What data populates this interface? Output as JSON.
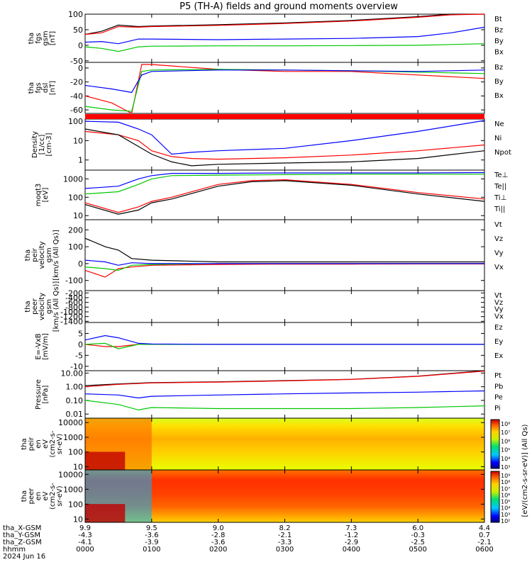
{
  "title": "P5 (TH-A) fields and ground moments overview",
  "panels": [
    {
      "id": "fgs_gsm",
      "label_lines": [
        "tha",
        "fgs",
        "gsm",
        "[nT]"
      ],
      "scale": "linear",
      "ylim": [
        -55,
        100
      ],
      "ticks": [
        -50,
        0,
        50,
        100
      ],
      "legend": [
        {
          "name": "Bt",
          "color": "#000000"
        },
        {
          "name": "Bz",
          "color": "#ff0000"
        },
        {
          "name": "By",
          "color": "#00c800"
        },
        {
          "name": "Bx",
          "color": "#0000ff"
        }
      ]
    },
    {
      "id": "fgs_dsl",
      "label_lines": [
        "tha",
        "fgs",
        "dsl",
        "[nT]"
      ],
      "scale": "linear",
      "ylim": [
        -65,
        8
      ],
      "ticks": [
        -60,
        -40,
        -20,
        0
      ],
      "legend": [
        {
          "name": "Bz",
          "color": "#ff0000"
        },
        {
          "name": "By",
          "color": "#00c800"
        },
        {
          "name": "Bx",
          "color": "#0000ff"
        }
      ]
    },
    {
      "id": "density",
      "label_lines": [
        "Density",
        "[1/cc]",
        "[cm-3]"
      ],
      "scale": "log",
      "ylim": [
        0.3,
        130
      ],
      "ticks": [
        1,
        10,
        100
      ],
      "legend": [
        {
          "name": "Ne",
          "color": "#ff0000"
        },
        {
          "name": "Ni",
          "color": "#000000"
        },
        {
          "name": "Npot",
          "color": "#0000ff"
        }
      ]
    },
    {
      "id": "temp",
      "label_lines": [
        "moqt3",
        "[eV]"
      ],
      "scale": "log",
      "ylim": [
        6,
        3000
      ],
      "ticks": [
        10,
        100,
        1000
      ],
      "legend": [
        {
          "name": "Te⊥",
          "color": "#ff0000"
        },
        {
          "name": "Te||",
          "color": "#000000"
        },
        {
          "name": "Ti⊥",
          "color": "#0000ff"
        },
        {
          "name": "Ti||",
          "color": "#00c800"
        }
      ]
    },
    {
      "id": "peir_vel",
      "label_lines": [
        "tha",
        "peir",
        "velocity",
        "gsm",
        "[km/s (All Qs)]"
      ],
      "scale": "linear",
      "ylim": [
        -160,
        260
      ],
      "ticks": [
        -100,
        0,
        100,
        200
      ],
      "legend": [
        {
          "name": "Vt",
          "color": "#000000"
        },
        {
          "name": "Vz",
          "color": "#ff0000"
        },
        {
          "name": "Vy",
          "color": "#00c800"
        },
        {
          "name": "Vx",
          "color": "#0000ff"
        }
      ]
    },
    {
      "id": "peer_vel",
      "label_lines": [
        "tha",
        "peer",
        "velocity",
        "gsm",
        "[km/s (All Qs)]"
      ],
      "scale": "linear",
      "ylim": [
        -1450,
        -100
      ],
      "ticks": [
        -1400,
        -1200,
        -1000,
        -800,
        -600,
        -400,
        -200
      ],
      "legend": [
        {
          "name": "Vt",
          "color": "#000000"
        },
        {
          "name": "Vz",
          "color": "#ff0000"
        },
        {
          "name": "Vy",
          "color": "#00c800"
        },
        {
          "name": "Vx",
          "color": "#0000ff"
        }
      ]
    },
    {
      "id": "efield",
      "label_lines": [
        "E=-VxB",
        "[mV/m]"
      ],
      "scale": "linear",
      "ylim": [
        -12,
        10
      ],
      "ticks": [
        -10,
        -5,
        0,
        5
      ],
      "legend": [
        {
          "name": "Ez",
          "color": "#ff0000"
        },
        {
          "name": "Ey",
          "color": "#00c800"
        },
        {
          "name": "Ex",
          "color": "#0000ff"
        }
      ]
    },
    {
      "id": "pressure",
      "label_lines": [
        "Pressure",
        "[nPa]"
      ],
      "scale": "log",
      "ylim": [
        0.005,
        15
      ],
      "tick_labels": [
        "0.01",
        "0.10",
        "1.00",
        "10.00"
      ],
      "ticks": [
        0.01,
        0.1,
        1,
        10
      ],
      "legend": [
        {
          "name": "Pt",
          "color": "#000000"
        },
        {
          "name": "Pb",
          "color": "#ff0000"
        },
        {
          "name": "Pe",
          "color": "#00c800"
        },
        {
          "name": "Pi",
          "color": "#0000ff"
        }
      ]
    },
    {
      "id": "peir_en",
      "label_lines": [
        "tha",
        "peir",
        "en",
        "eV",
        "(cm2-s-",
        "sr-eV)"
      ],
      "scale": "log",
      "ylim": [
        6,
        20000
      ],
      "ticks": [
        10,
        100,
        1000,
        10000
      ]
    },
    {
      "id": "peer_en",
      "label_lines": [
        "tha",
        "peer",
        "en",
        "eV",
        "(cm2-s-",
        "sr-eV)"
      ],
      "scale": "log",
      "ylim": [
        6,
        20000
      ],
      "ticks": [
        10,
        100,
        1000,
        10000
      ]
    }
  ],
  "colorbar": {
    "label": "[eV/(cm2-s-sr-eV)] (All Qs)",
    "upper_ticks": [
      "10⁸",
      "10⁷",
      "10⁶",
      "10⁵",
      "10⁴",
      "10³"
    ],
    "lower_ticks": [
      "10⁹",
      "10⁸",
      "10⁷",
      "10⁶",
      "10⁵",
      "10⁴",
      "10³",
      "10²"
    ]
  },
  "x_axis": {
    "row_labels": [
      "tha_X-GSM",
      "tha_Y-GSM",
      "tha_Z-GSM",
      "hhmm",
      "2024 Jun 16"
    ],
    "columns": [
      {
        "x": "9.9",
        "y": "-4.3",
        "z": "-4.1",
        "hhmm": "0000"
      },
      {
        "x": "9.5",
        "y": "-3.6",
        "z": "-3.9",
        "hhmm": "0100"
      },
      {
        "x": "9.0",
        "y": "-2.8",
        "z": "-3.6",
        "hhmm": "0200"
      },
      {
        "x": "8.2",
        "y": "-2.1",
        "z": "-3.3",
        "hhmm": "0300"
      },
      {
        "x": "7.3",
        "y": "-1.2",
        "z": "-2.9",
        "hhmm": "0400"
      },
      {
        "x": "6.0",
        "y": "-0.3",
        "z": "-2.5",
        "hhmm": "0500"
      },
      {
        "x": "4.4",
        "y": "0.7",
        "z": "-2.1",
        "hhmm": "0600"
      }
    ]
  },
  "status_bar_color": "#ff0000",
  "chart_data": {
    "type": "line",
    "title": "P5 (TH-A) fields and ground moments overview",
    "x_unit": "hhmm",
    "x_range": [
      "0000",
      "0600"
    ],
    "series": [
      {
        "name": "Bt",
        "panel": "fgs_gsm",
        "x": [
          0,
          0.25,
          0.5,
          0.8,
          1,
          1.5,
          2,
          3,
          4,
          5,
          5.5,
          6
        ],
        "y": [
          35,
          45,
          65,
          60,
          62,
          64,
          66,
          72,
          80,
          92,
          100,
          110
        ]
      },
      {
        "name": "Bz",
        "panel": "fgs_gsm",
        "x": [
          0,
          0.25,
          0.5,
          0.8,
          1,
          1.5,
          2,
          3,
          4,
          5,
          5.5,
          6
        ],
        "y": [
          35,
          40,
          60,
          58,
          60,
          62,
          64,
          70,
          78,
          90,
          98,
          108
        ]
      },
      {
        "name": "By",
        "panel": "fgs_gsm",
        "x": [
          0,
          0.25,
          0.5,
          0.8,
          1,
          2,
          3,
          4,
          5,
          6
        ],
        "y": [
          -5,
          -10,
          -20,
          -5,
          -3,
          -2,
          -2,
          -1,
          0,
          5
        ]
      },
      {
        "name": "Bx",
        "panel": "fgs_gsm",
        "x": [
          0,
          0.25,
          0.5,
          0.8,
          1,
          2,
          3,
          4,
          5,
          5.5,
          6
        ],
        "y": [
          10,
          12,
          5,
          20,
          20,
          18,
          20,
          22,
          28,
          40,
          58
        ]
      },
      {
        "name": "Bz",
        "panel": "fgs_dsl",
        "x": [
          0,
          0.4,
          0.7,
          0.85,
          1,
          2,
          3,
          4,
          5,
          6
        ],
        "y": [
          -40,
          -50,
          -65,
          5,
          5,
          -2,
          -5,
          -5,
          -10,
          -15
        ]
      },
      {
        "name": "By",
        "panel": "fgs_dsl",
        "x": [
          0,
          0.4,
          0.7,
          0.85,
          1,
          2,
          3,
          4,
          5,
          6
        ],
        "y": [
          -55,
          -60,
          -62,
          -5,
          -3,
          -2,
          -3,
          -4,
          -6,
          -8
        ]
      },
      {
        "name": "Bx",
        "panel": "fgs_dsl",
        "x": [
          0,
          0.4,
          0.7,
          0.85,
          1,
          2,
          3,
          4,
          5,
          6
        ],
        "y": [
          -25,
          -30,
          -35,
          -10,
          -5,
          -3,
          -3,
          -4,
          -5,
          -3
        ]
      },
      {
        "name": "Ne",
        "panel": "density",
        "x": [
          0,
          0.5,
          0.8,
          1,
          1.3,
          1.6,
          2,
          3,
          4,
          5,
          6
        ],
        "y": [
          30,
          20,
          10,
          3,
          1.5,
          1.2,
          1.1,
          1.3,
          1.8,
          3,
          6
        ]
      },
      {
        "name": "Ni",
        "panel": "density",
        "x": [
          0,
          0.5,
          0.8,
          1,
          1.3,
          1.6,
          2,
          3,
          4,
          5,
          6
        ],
        "y": [
          40,
          20,
          5,
          2,
          0.8,
          0.5,
          0.6,
          0.7,
          0.8,
          1.2,
          3
        ]
      },
      {
        "name": "Npot",
        "panel": "density",
        "x": [
          0,
          0.5,
          0.8,
          1,
          1.3,
          1.6,
          2,
          3,
          4,
          5,
          6
        ],
        "y": [
          100,
          90,
          40,
          20,
          2,
          2.5,
          3,
          4,
          10,
          30,
          110
        ]
      },
      {
        "name": "Te⊥",
        "panel": "temp",
        "x": [
          0,
          0.5,
          0.8,
          1,
          1.3,
          2,
          2.5,
          3,
          4,
          5,
          6
        ],
        "y": [
          50,
          15,
          30,
          60,
          100,
          500,
          800,
          900,
          500,
          180,
          80
        ]
      },
      {
        "name": "Te||",
        "panel": "temp",
        "x": [
          0,
          0.5,
          0.8,
          1,
          1.3,
          2,
          2.5,
          3,
          4,
          5,
          6
        ],
        "y": [
          40,
          12,
          20,
          50,
          80,
          400,
          700,
          800,
          450,
          150,
          60
        ]
      },
      {
        "name": "Ti⊥",
        "panel": "temp",
        "x": [
          0,
          0.5,
          0.8,
          1,
          1.3,
          2,
          3,
          4,
          5,
          6
        ],
        "y": [
          300,
          400,
          1000,
          1500,
          2000,
          2000,
          2100,
          2100,
          2100,
          2200
        ]
      },
      {
        "name": "Ti||",
        "panel": "temp",
        "x": [
          0,
          0.5,
          0.8,
          1,
          1.3,
          2,
          3,
          4,
          5,
          6
        ],
        "y": [
          150,
          200,
          500,
          1000,
          1500,
          1600,
          1700,
          1800,
          1800,
          1800
        ]
      },
      {
        "name": "Vt",
        "panel": "peir_vel",
        "x": [
          0,
          0.3,
          0.5,
          0.7,
          1,
          1.5,
          2,
          3,
          4,
          5,
          6
        ],
        "y": [
          150,
          100,
          80,
          30,
          20,
          15,
          10,
          10,
          10,
          10,
          10
        ]
      },
      {
        "name": "Vz",
        "panel": "peir_vel",
        "x": [
          0,
          0.3,
          0.5,
          0.7,
          1,
          2,
          3,
          4,
          5,
          6
        ],
        "y": [
          -40,
          -80,
          -30,
          -20,
          -10,
          -5,
          -3,
          -3,
          -2,
          -2
        ]
      },
      {
        "name": "Vy",
        "panel": "peir_vel",
        "x": [
          0,
          0.3,
          0.5,
          0.7,
          1,
          2,
          3,
          4,
          5,
          6
        ],
        "y": [
          -20,
          -30,
          -40,
          -10,
          -5,
          0,
          0,
          0,
          0,
          0
        ]
      },
      {
        "name": "Vx",
        "panel": "peir_vel",
        "x": [
          0,
          0.3,
          0.5,
          0.7,
          1,
          2,
          3,
          4,
          5,
          6
        ],
        "y": [
          20,
          10,
          -10,
          5,
          0,
          0,
          0,
          0,
          0,
          0
        ]
      },
      {
        "name": "Ez",
        "panel": "efield",
        "x": [
          0,
          0.3,
          0.5,
          0.8,
          1,
          2,
          3,
          4,
          5,
          6
        ],
        "y": [
          0,
          -1,
          -1,
          0,
          0,
          0,
          0,
          0,
          0,
          0
        ]
      },
      {
        "name": "Ey",
        "panel": "efield",
        "x": [
          0,
          0.3,
          0.5,
          0.8,
          1,
          2,
          3,
          4,
          5,
          6
        ],
        "y": [
          0,
          0.5,
          -2,
          0,
          0,
          0,
          0,
          0,
          0,
          0
        ]
      },
      {
        "name": "Ex",
        "panel": "efield",
        "x": [
          0,
          0.3,
          0.5,
          0.8,
          1,
          2,
          3,
          4,
          5,
          6
        ],
        "y": [
          2,
          4,
          3,
          0.5,
          0.2,
          0,
          0,
          0,
          0,
          0
        ]
      },
      {
        "name": "Pt",
        "panel": "pressure",
        "x": [
          0,
          0.5,
          1,
          2,
          3,
          4,
          5,
          6
        ],
        "y": [
          1.2,
          1.6,
          2,
          2.3,
          2.8,
          3.5,
          6,
          15
        ]
      },
      {
        "name": "Pb",
        "panel": "pressure",
        "x": [
          0,
          0.5,
          1,
          2,
          3,
          4,
          5,
          6
        ],
        "y": [
          1.0,
          1.5,
          1.9,
          2.2,
          2.7,
          3.4,
          5.8,
          14
        ]
      },
      {
        "name": "Pe",
        "panel": "pressure",
        "x": [
          0,
          0.5,
          0.8,
          1,
          2,
          3,
          4,
          5,
          6
        ],
        "y": [
          0.1,
          0.05,
          0.02,
          0.03,
          0.025,
          0.025,
          0.025,
          0.03,
          0.04
        ]
      },
      {
        "name": "Pi",
        "panel": "pressure",
        "x": [
          0,
          0.5,
          0.8,
          1,
          2,
          3,
          4,
          5,
          6
        ],
        "y": [
          0.3,
          0.25,
          0.15,
          0.2,
          0.25,
          0.3,
          0.35,
          0.4,
          0.5
        ]
      }
    ]
  }
}
